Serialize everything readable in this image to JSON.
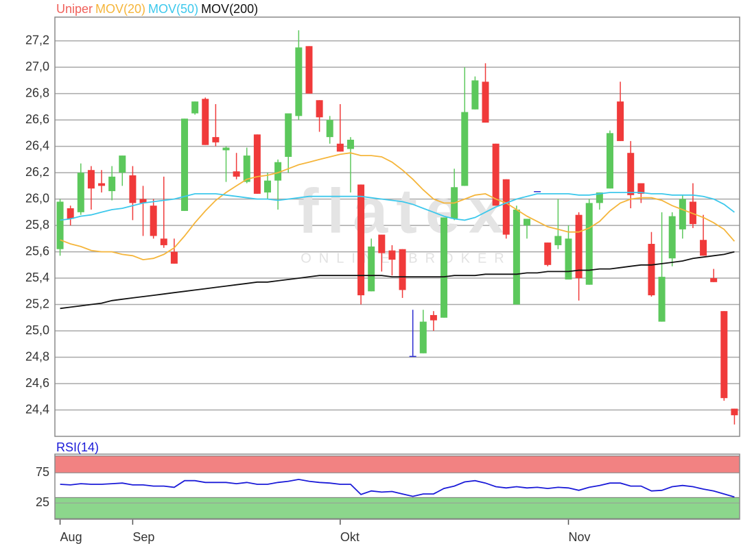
{
  "chart_data": [
    {
      "type": "candlestick",
      "categories": [
        "Aug",
        null,
        null,
        null,
        null,
        null,
        null,
        "Sep",
        null,
        null,
        null,
        null,
        null,
        null,
        null,
        null,
        null,
        null,
        null,
        null,
        null,
        null,
        null,
        null,
        null,
        null,
        null,
        "Okt",
        null,
        null,
        null,
        null,
        null,
        null,
        null,
        null,
        null,
        null,
        null,
        null,
        null,
        null,
        null,
        null,
        null,
        null,
        null,
        null,
        null,
        "Nov",
        null,
        null,
        null,
        null,
        null,
        null,
        null,
        null,
        null,
        null,
        null,
        null,
        null,
        null,
        null,
        null
      ],
      "series": [
        {
          "name": "Uniper",
          "type": "candlestick",
          "color": "#f0605a",
          "up_color": "#5cc85c",
          "down_color": "#f03a3a",
          "flat_color": "#2a2ad0",
          "open": [
            25.62,
            25.93,
            25.9,
            26.22,
            26.12,
            26.06,
            26.2,
            26.18,
            26.0,
            25.95,
            25.7,
            25.6,
            25.91,
            26.65,
            26.76,
            26.47,
            26.37,
            26.21,
            26.13,
            26.49,
            26.05,
            26.14,
            26.32,
            26.63,
            27.16,
            26.75,
            26.47,
            26.42,
            26.38,
            26.11,
            25.3,
            25.73,
            25.61,
            25.62,
            24.81,
            24.83,
            25.12,
            25.1,
            25.85,
            26.1,
            26.68,
            26.89,
            26.42,
            26.15,
            25.2,
            25.8,
            26.06,
            25.67,
            25.65,
            25.39,
            25.88,
            25.35,
            25.97,
            26.08,
            26.74,
            26.35,
            26.12,
            25.66,
            25.07,
            25.55,
            25.77,
            25.98,
            25.69,
            25.4,
            25.15,
            24.41
          ],
          "high": [
            26.0,
            25.95,
            26.27,
            26.25,
            26.22,
            26.25,
            26.33,
            26.25,
            26.1,
            26.0,
            26.17,
            25.7,
            26.61,
            26.74,
            26.77,
            26.72,
            26.4,
            26.35,
            26.39,
            26.49,
            26.2,
            26.3,
            26.65,
            27.28,
            27.16,
            26.75,
            26.63,
            26.72,
            26.47,
            26.11,
            25.7,
            25.73,
            25.65,
            25.62,
            25.16,
            25.16,
            25.15,
            25.86,
            26.23,
            27.0,
            26.93,
            27.03,
            26.42,
            26.15,
            25.95,
            25.84,
            26.06,
            25.67,
            26.0,
            25.8,
            25.9,
            26.0,
            26.05,
            26.52,
            26.89,
            26.44,
            26.12,
            25.75,
            25.9,
            25.9,
            26.03,
            26.12,
            25.88,
            25.47,
            25.15,
            24.41
          ],
          "low": [
            25.57,
            25.8,
            25.88,
            25.92,
            26.05,
            25.99,
            26.1,
            25.84,
            25.72,
            25.7,
            25.63,
            25.51,
            25.91,
            26.64,
            26.41,
            26.4,
            26.13,
            26.15,
            26.12,
            26.04,
            26.0,
            25.92,
            26.2,
            26.6,
            26.8,
            26.51,
            26.42,
            26.36,
            26.05,
            25.2,
            25.3,
            25.45,
            25.42,
            25.25,
            24.81,
            24.83,
            25.0,
            25.1,
            25.84,
            26.1,
            26.68,
            26.58,
            25.95,
            25.7,
            25.2,
            25.7,
            26.06,
            25.49,
            25.62,
            25.39,
            25.23,
            25.35,
            25.92,
            26.08,
            26.44,
            25.93,
            25.97,
            25.26,
            25.07,
            25.49,
            25.7,
            25.78,
            25.57,
            25.37,
            24.47,
            24.29
          ],
          "close": [
            25.98,
            25.85,
            26.2,
            26.08,
            26.1,
            26.17,
            26.33,
            25.97,
            25.97,
            25.72,
            25.65,
            25.51,
            26.61,
            26.74,
            26.41,
            26.43,
            26.39,
            26.17,
            26.33,
            26.04,
            26.14,
            26.28,
            26.65,
            27.15,
            26.8,
            26.62,
            26.6,
            26.36,
            26.45,
            25.27,
            25.64,
            25.59,
            25.54,
            25.31,
            24.81,
            25.07,
            25.08,
            25.86,
            26.09,
            26.66,
            26.9,
            26.58,
            25.95,
            25.73,
            25.92,
            25.85,
            26.06,
            25.5,
            25.72,
            25.7,
            25.4,
            25.97,
            26.05,
            26.5,
            26.44,
            26.03,
            26.04,
            25.27,
            25.41,
            25.87,
            26.0,
            25.81,
            25.57,
            25.37,
            24.49,
            24.36
          ]
        },
        {
          "name": "MOV(20)",
          "type": "line",
          "color": "#f5b53a",
          "values": [
            25.69,
            25.66,
            25.64,
            25.61,
            25.6,
            25.6,
            25.58,
            25.57,
            25.54,
            25.55,
            25.58,
            25.63,
            25.72,
            25.82,
            25.91,
            25.99,
            26.05,
            26.1,
            26.15,
            26.17,
            26.18,
            26.2,
            26.23,
            26.26,
            26.28,
            26.3,
            26.32,
            26.34,
            26.35,
            26.33,
            26.33,
            26.32,
            26.28,
            26.22,
            26.15,
            26.07,
            26.0,
            25.97,
            25.97,
            26.0,
            26.03,
            26.04,
            26.0,
            25.97,
            25.92,
            25.87,
            25.83,
            25.79,
            25.77,
            25.75,
            25.75,
            25.78,
            25.83,
            25.91,
            25.97,
            26.0,
            26.01,
            26.01,
            25.99,
            25.95,
            25.92,
            25.89,
            25.86,
            25.82,
            25.77,
            25.68
          ]
        },
        {
          "name": "MOV(50)",
          "type": "line",
          "color": "#3cc8ec",
          "values": [
            25.84,
            25.85,
            25.87,
            25.88,
            25.9,
            25.92,
            25.93,
            25.95,
            25.97,
            25.98,
            25.99,
            26.0,
            26.02,
            26.04,
            26.04,
            26.04,
            26.03,
            26.02,
            26.01,
            26.0,
            26.0,
            25.99,
            26.0,
            26.01,
            26.02,
            26.02,
            26.02,
            26.02,
            26.02,
            26.02,
            26.01,
            26.0,
            25.99,
            25.98,
            25.96,
            25.93,
            25.9,
            25.87,
            25.85,
            25.84,
            25.86,
            25.9,
            25.94,
            25.97,
            26.0,
            26.02,
            26.04,
            26.04,
            26.04,
            26.04,
            26.03,
            26.03,
            26.04,
            26.05,
            26.05,
            26.05,
            26.05,
            26.04,
            26.04,
            26.03,
            26.03,
            26.03,
            26.02,
            26.0,
            25.96,
            25.9
          ]
        },
        {
          "name": "MOV(200)",
          "type": "line",
          "color": "#111111",
          "values": [
            25.17,
            25.18,
            25.19,
            25.2,
            25.21,
            25.23,
            25.24,
            25.25,
            25.26,
            25.27,
            25.28,
            25.29,
            25.3,
            25.31,
            25.32,
            25.33,
            25.34,
            25.35,
            25.36,
            25.37,
            25.37,
            25.38,
            25.39,
            25.4,
            25.41,
            25.42,
            25.42,
            25.42,
            25.42,
            25.42,
            25.42,
            25.42,
            25.41,
            25.41,
            25.41,
            25.41,
            25.41,
            25.41,
            25.42,
            25.42,
            25.42,
            25.43,
            25.43,
            25.43,
            25.43,
            25.44,
            25.44,
            25.45,
            25.45,
            25.45,
            25.46,
            25.46,
            25.47,
            25.47,
            25.48,
            25.49,
            25.5,
            25.5,
            25.51,
            25.52,
            25.53,
            25.55,
            25.56,
            25.57,
            25.58,
            25.6
          ]
        }
      ],
      "ylim": [
        24.2,
        27.38
      ],
      "yticks": [
        {
          "value": 24.4,
          "label": "24,4"
        },
        {
          "value": 24.6,
          "label": "24,6"
        },
        {
          "value": 24.8,
          "label": "24,8"
        },
        {
          "value": 25.0,
          "label": "25,0"
        },
        {
          "value": 25.2,
          "label": "25,2"
        },
        {
          "value": 25.4,
          "label": "25,4"
        },
        {
          "value": 25.6,
          "label": "25,6"
        },
        {
          "value": 25.8,
          "label": "25,8"
        },
        {
          "value": 26.0,
          "label": "26,0"
        },
        {
          "value": 26.2,
          "label": "26,2"
        },
        {
          "value": 26.4,
          "label": "26,4"
        },
        {
          "value": 26.6,
          "label": "26,6"
        },
        {
          "value": 26.8,
          "label": "26,8"
        },
        {
          "value": 27.0,
          "label": "27,0"
        },
        {
          "value": 27.2,
          "label": "27,2"
        }
      ],
      "grid": true,
      "watermark": {
        "title": "flatex",
        "subtitle": "ONLINE BROKER"
      }
    },
    {
      "type": "line",
      "series": [
        {
          "name": "RSI(14)",
          "color": "#1a1ad8",
          "values": [
            56,
            55,
            57,
            56,
            56,
            57,
            58,
            55,
            55,
            53,
            53,
            51,
            62,
            62,
            59,
            59,
            59,
            57,
            59,
            56,
            56,
            59,
            61,
            64,
            61,
            59,
            58,
            56,
            56,
            39,
            45,
            43,
            44,
            40,
            36,
            40,
            40,
            49,
            53,
            60,
            62,
            58,
            52,
            50,
            52,
            50,
            51,
            49,
            51,
            50,
            46,
            51,
            54,
            58,
            58,
            53,
            53,
            45,
            46,
            52,
            54,
            52,
            48,
            45,
            40,
            35
          ]
        }
      ],
      "ylim": [
        -2,
        106
      ],
      "yticks": [
        25,
        75
      ],
      "grid": true,
      "bands": [
        {
          "from": 75,
          "to": 103,
          "color": "#f28282"
        },
        {
          "from": -1,
          "to": 34,
          "color": "#8cd68c"
        }
      ]
    }
  ]
}
